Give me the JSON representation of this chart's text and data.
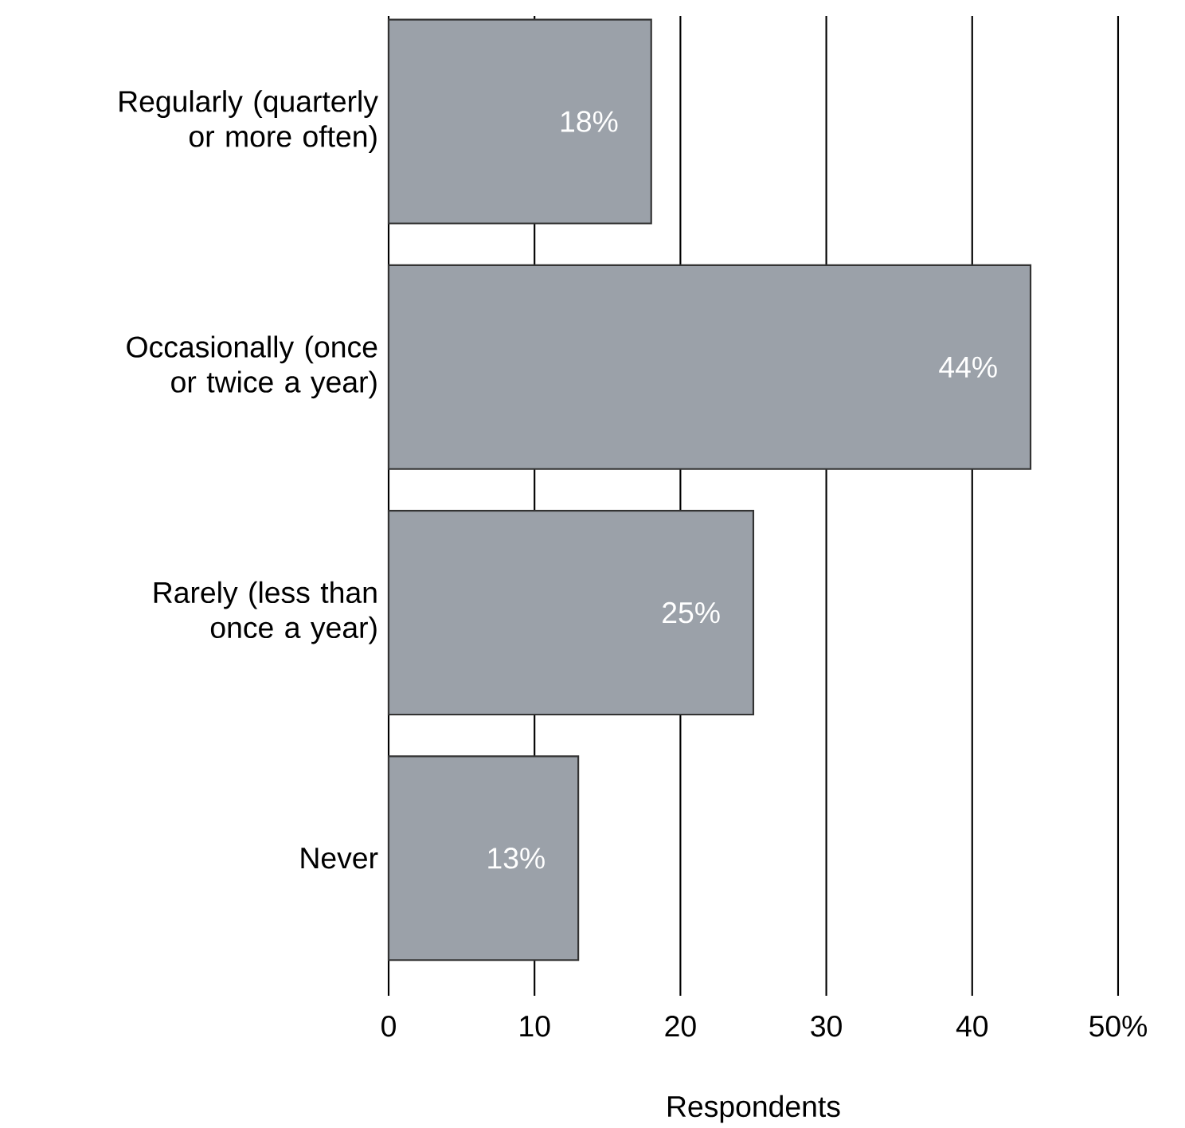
{
  "chart_data": {
    "type": "bar",
    "orientation": "horizontal",
    "xlabel": "Respondents",
    "categories": [
      "Regularly (quarterly or more often)",
      "Occasionally (once or twice a year)",
      "Rarely (less than once a year)",
      "Never"
    ],
    "values": [
      18,
      44,
      25,
      13
    ],
    "value_labels": [
      "18%",
      "44%",
      "25%",
      "13%"
    ],
    "color": "#9ba1a9",
    "xlim": [
      0,
      50
    ],
    "xticks": [
      0,
      10,
      20,
      30,
      40,
      {
        "value": 50,
        "label": "50%"
      }
    ],
    "grid": "x"
  }
}
